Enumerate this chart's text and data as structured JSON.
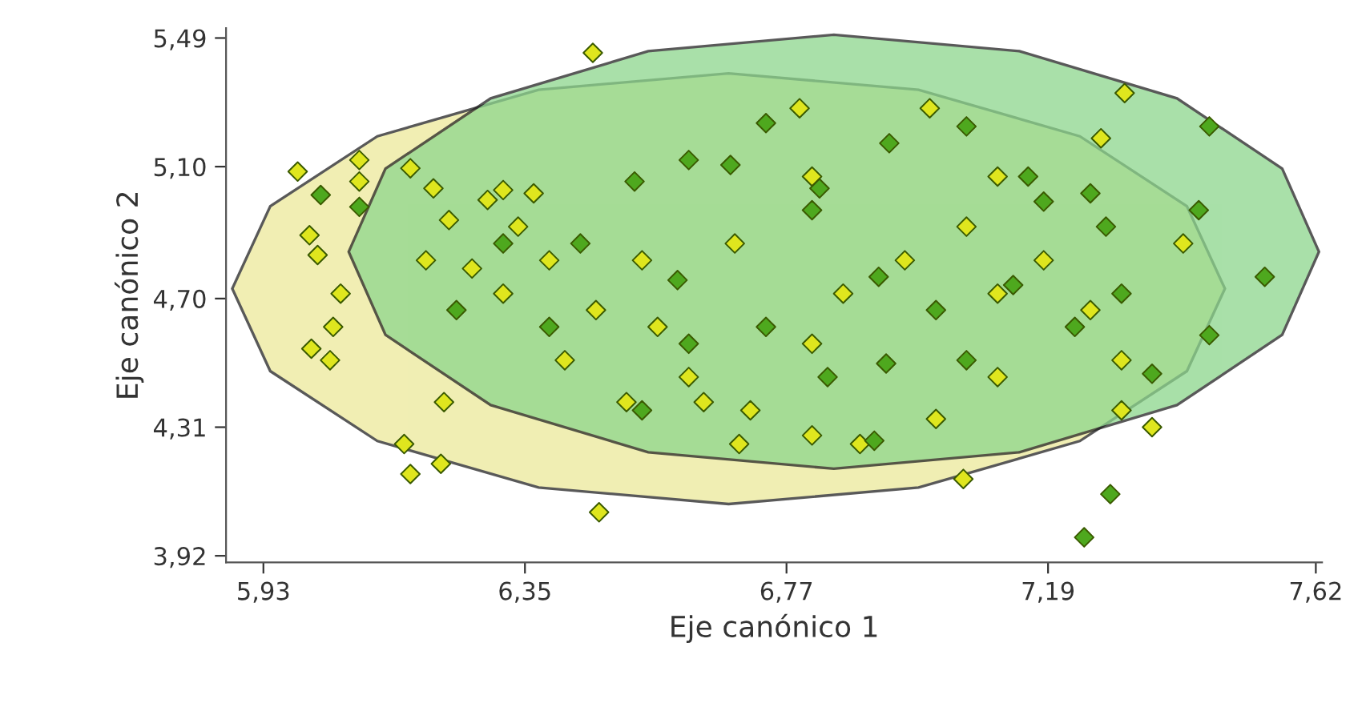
{
  "chart_data": {
    "type": "scatter",
    "xlabel": "Eje canónico 1",
    "ylabel": "Eje canónico 2",
    "xlim": [
      5.87,
      7.63
    ],
    "ylim": [
      3.9,
      5.52
    ],
    "xticks": [
      {
        "value": 5.93,
        "label": "5,93"
      },
      {
        "value": 6.35,
        "label": "6,35"
      },
      {
        "value": 6.77,
        "label": "6,77"
      },
      {
        "value": 7.19,
        "label": "7,19"
      },
      {
        "value": 7.62,
        "label": "7,62"
      }
    ],
    "yticks": [
      {
        "value": 3.92,
        "label": "3,92"
      },
      {
        "value": 4.31,
        "label": "4,31"
      },
      {
        "value": 4.7,
        "label": "4,70"
      },
      {
        "value": 5.1,
        "label": "5,10"
      },
      {
        "value": 5.49,
        "label": "5,49"
      }
    ],
    "grid": false,
    "legend": false,
    "series": [
      {
        "type": "area",
        "color": "#ece99a",
        "x": [
          7.474,
          7.413,
          7.241,
          6.982,
          6.677,
          6.372,
          6.113,
          5.941,
          5.88,
          5.941,
          6.113,
          6.372,
          6.677,
          6.982,
          7.241,
          7.413
        ],
        "values": [
          4.73,
          4.98,
          5.192,
          5.333,
          5.383,
          5.333,
          5.192,
          4.98,
          4.73,
          4.48,
          4.268,
          4.127,
          4.077,
          4.127,
          4.268,
          4.48
        ]
      },
      {
        "type": "area",
        "color": "#8cd68c",
        "x": [
          7.625,
          7.566,
          7.397,
          7.144,
          6.846,
          6.548,
          6.295,
          6.126,
          6.067,
          6.126,
          6.295,
          6.548,
          6.846,
          7.144,
          7.397,
          7.566
        ],
        "values": [
          4.842,
          5.094,
          5.307,
          5.45,
          5.5,
          5.45,
          5.307,
          5.094,
          4.842,
          4.59,
          4.377,
          4.234,
          4.184,
          4.234,
          4.377,
          4.59
        ]
      },
      {
        "marker": "diamond",
        "color": "#dfe61e",
        "x": [
          6.459,
          5.985,
          6.084,
          6.084,
          6.004,
          6.017,
          6.042,
          6.037,
          6.007,
          6.054,
          6.166,
          6.156,
          6.215,
          6.22,
          6.469,
          7.054,
          6.166,
          6.203,
          6.29,
          6.315,
          6.364,
          6.339,
          6.228,
          6.191,
          6.265,
          6.315,
          6.389,
          6.464,
          6.414,
          6.563,
          6.613,
          6.712,
          6.811,
          6.861,
          6.96,
          7.059,
          7.109,
          7.183,
          7.258,
          7.308,
          7.308,
          7.109,
          7.01,
          6.888,
          6.811,
          6.637,
          6.513,
          6.694,
          6.791,
          7.0,
          7.313,
          7.275,
          6.811,
          6.687,
          6.538,
          7.109,
          7.407,
          7.357
        ],
        "values": [
          5.445,
          5.085,
          5.12,
          5.055,
          4.892,
          4.832,
          4.614,
          4.513,
          4.548,
          4.715,
          4.168,
          4.259,
          4.199,
          4.386,
          4.052,
          4.153,
          5.095,
          5.034,
          4.999,
          5.029,
          5.019,
          4.918,
          4.938,
          4.816,
          4.791,
          4.715,
          4.816,
          4.665,
          4.513,
          4.614,
          4.462,
          4.361,
          4.563,
          4.715,
          4.816,
          4.918,
          5.07,
          4.816,
          4.665,
          4.513,
          4.361,
          4.462,
          4.335,
          4.259,
          4.285,
          4.386,
          4.386,
          4.259,
          5.277,
          5.277,
          5.323,
          5.186,
          5.07,
          4.867,
          4.816,
          4.715,
          4.867,
          4.31
        ]
      },
      {
        "marker": "diamond",
        "color": "#4ea81e",
        "x": [
          6.022,
          6.084,
          7.449,
          7.538,
          7.449,
          7.357,
          7.29,
          7.248,
          6.737,
          6.613,
          6.68,
          6.811,
          6.823,
          6.935,
          7.059,
          7.158,
          7.183,
          7.283,
          7.258,
          6.526,
          6.439,
          6.315,
          6.24,
          6.389,
          6.538,
          6.613,
          6.737,
          6.836,
          6.93,
          6.918,
          7.01,
          7.059,
          7.134,
          7.233,
          7.308,
          7.432,
          6.911,
          6.595
        ],
        "values": [
          5.014,
          4.978,
          5.222,
          4.766,
          4.589,
          4.472,
          4.107,
          3.976,
          5.232,
          5.12,
          5.105,
          4.968,
          5.034,
          5.171,
          5.222,
          5.07,
          4.994,
          4.918,
          5.019,
          5.055,
          4.867,
          4.867,
          4.665,
          4.614,
          4.361,
          4.563,
          4.614,
          4.462,
          4.503,
          4.766,
          4.665,
          4.513,
          4.741,
          4.614,
          4.715,
          4.968,
          4.269,
          4.756
        ]
      }
    ]
  }
}
